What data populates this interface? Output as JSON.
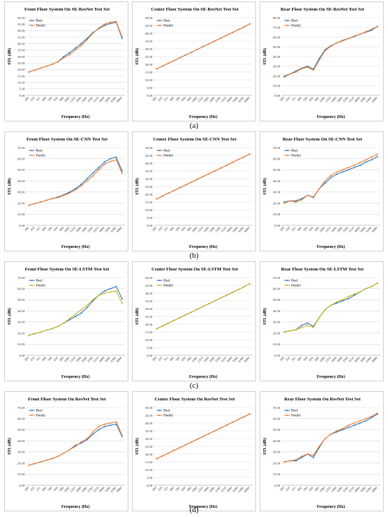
{
  "freq_labels": [
    "200",
    "250",
    "315",
    "400",
    "500",
    "630",
    "800",
    "1000",
    "1250",
    "1600",
    "2000",
    "2500",
    "3150",
    "4000",
    "5000",
    "6300",
    "8000"
  ],
  "colors": {
    "real": "#2e75b6",
    "predict": "#ed7d31",
    "predict_lstm": "#c9b21a",
    "grid": "#d9d9d9",
    "frame": "#d0d0d0"
  },
  "row_labels": [
    "(a)",
    "(b)",
    "(c)",
    "(d)"
  ],
  "chart_data": [
    {
      "type": "line",
      "title": "Front Floor System On SE-ResNet Test Set",
      "xlabel": "Frequency (Hz)",
      "ylabel": "STL (dB)",
      "ylim": [
        0,
        60
      ],
      "ystep": 5,
      "tick_decimals": 2,
      "legend": "top-left",
      "series": [
        {
          "name": "Real",
          "color": "#2e75b6",
          "values": [
            18,
            19.5,
            21,
            22.5,
            24,
            26,
            30,
            33,
            36.5,
            40,
            44,
            48.5,
            51.5,
            54,
            55.5,
            56.5,
            44
          ]
        },
        {
          "name": "Predict",
          "color": "#ed7d31",
          "values": [
            18,
            19.5,
            21,
            22.5,
            24,
            26,
            29,
            31.5,
            35,
            38.5,
            43,
            48,
            52,
            55,
            56.5,
            57,
            45
          ]
        }
      ]
    },
    {
      "type": "line",
      "title": "Center Floor System On SE-ResNet Test Set",
      "xlabel": "Frequency (Hz)",
      "ylabel": "STL (dB)",
      "ylim": [
        0,
        50
      ],
      "ystep": 5,
      "tick_decimals": 2,
      "legend": "top-left",
      "series": [
        {
          "name": "Real",
          "color": "#2e75b6",
          "values": [
            17,
            18.8,
            20.6,
            22.4,
            24.2,
            26,
            27.8,
            29.6,
            31.4,
            33.2,
            35,
            36.8,
            38.6,
            40.4,
            42.2,
            44,
            46
          ]
        },
        {
          "name": "Predict",
          "color": "#ed7d31",
          "values": [
            17,
            18.8,
            20.6,
            22.4,
            24.2,
            26,
            27.8,
            29.6,
            31.4,
            33.2,
            35,
            36.8,
            38.6,
            40.4,
            42.2,
            44,
            46
          ]
        }
      ]
    },
    {
      "type": "line",
      "title": "Rear Floor System On SE-ResNet Test Set",
      "xlabel": "Frequency (Hz)",
      "ylabel": "STL (dB)",
      "ylim": [
        0,
        80
      ],
      "ystep": 10,
      "tick_decimals": 2,
      "legend": "top-left",
      "series": [
        {
          "name": "Real",
          "color": "#2e75b6",
          "values": [
            19,
            22,
            25,
            28,
            30,
            27,
            38,
            47,
            51,
            54,
            56.5,
            58.5,
            60.5,
            63,
            65,
            67,
            71
          ]
        },
        {
          "name": "Predict",
          "color": "#ed7d31",
          "values": [
            20,
            22,
            24,
            27.5,
            29,
            26,
            36,
            46,
            50.5,
            54,
            56,
            58.5,
            61,
            63,
            65.5,
            68,
            71
          ]
        }
      ]
    },
    {
      "type": "line",
      "title": "Front Floor System On SE-CNN Test Set",
      "xlabel": "Frequency (Hz)",
      "ylabel": "STL (dB)",
      "ylim": [
        0,
        70
      ],
      "ystep": 10,
      "tick_decimals": 2,
      "legend": "top-left",
      "series": [
        {
          "name": "Real",
          "color": "#2e75b6",
          "values": [
            18,
            19.5,
            21,
            22.5,
            24,
            25.5,
            27.5,
            30,
            33,
            37,
            42,
            47,
            52,
            57,
            60,
            61.5,
            49
          ]
        },
        {
          "name": "Predict",
          "color": "#ed7d31",
          "values": [
            18,
            19.5,
            21,
            22.5,
            24,
            25,
            27,
            29,
            32,
            35.5,
            40,
            44.5,
            50,
            55,
            57.5,
            59,
            47
          ]
        }
      ]
    },
    {
      "type": "line",
      "title": "Center Floor System On SE-CNN Test Set",
      "xlabel": "Frequency (Hz)",
      "ylabel": "STL (dB)",
      "ylim": [
        0,
        50
      ],
      "ystep": 5,
      "tick_decimals": 2,
      "legend": "top-left",
      "series": [
        {
          "name": "Real",
          "color": "#2e75b6",
          "values": [
            17,
            18.8,
            20.6,
            22.4,
            24.2,
            26,
            27.8,
            29.6,
            31.4,
            33.2,
            35,
            36.8,
            38.6,
            40.4,
            42.2,
            44,
            46
          ]
        },
        {
          "name": "Predict",
          "color": "#ed7d31",
          "values": [
            17,
            18.8,
            20.6,
            22.4,
            24.2,
            26,
            27.8,
            29.6,
            31.4,
            33.2,
            35,
            36.8,
            38.6,
            40.4,
            42.2,
            44,
            46
          ]
        }
      ]
    },
    {
      "type": "line",
      "title": "Rear Floor System On SE-CNN Test Set",
      "xlabel": "Frequency (Hz)",
      "ylabel": "STL (dB)",
      "ylim": [
        0,
        70
      ],
      "ystep": 10,
      "tick_decimals": 2,
      "legend": "top-left",
      "series": [
        {
          "name": "Real",
          "color": "#2e75b6",
          "values": [
            21,
            22,
            22,
            24,
            27,
            25.5,
            33,
            38,
            43,
            46,
            48,
            50,
            52,
            54,
            57,
            59,
            62
          ]
        },
        {
          "name": "Predict",
          "color": "#ed7d31",
          "values": [
            20,
            22,
            21,
            23,
            27,
            25,
            33,
            40,
            45,
            48,
            50,
            52,
            54,
            56.5,
            59,
            61.5,
            64
          ]
        }
      ]
    },
    {
      "type": "line",
      "title": "Front Floor System On SE-LSTM Test Set",
      "xlabel": "Frequency (Hz)",
      "ylabel": "STL (dB)",
      "ylim": [
        0,
        70
      ],
      "ystep": 10,
      "tick_decimals": 2,
      "legend": "top-left",
      "series": [
        {
          "name": "Real",
          "color": "#2e75b6",
          "values": [
            18,
            19.5,
            21,
            22.5,
            24,
            26,
            29,
            32,
            35,
            38,
            43,
            49,
            54,
            58,
            60,
            62,
            51
          ]
        },
        {
          "name": "Predict",
          "color": "#c9b21a",
          "values": [
            18,
            19.5,
            21,
            22.5,
            24,
            26,
            29,
            33,
            37,
            41,
            45,
            50,
            54,
            56,
            57,
            58,
            47
          ]
        }
      ]
    },
    {
      "type": "line",
      "title": "Center Floor System On SE-LSTM Test Set",
      "xlabel": "Frequency (Hz)",
      "ylabel": "STL (dB)",
      "ylim": [
        0,
        50
      ],
      "ystep": 5,
      "tick_decimals": 2,
      "legend": "top-left",
      "series": [
        {
          "name": "Real",
          "color": "#2e75b6",
          "values": [
            17,
            18.8,
            20.6,
            22.4,
            24.2,
            26,
            27.8,
            29.6,
            31.4,
            33.2,
            35,
            36.8,
            38.6,
            40.4,
            42.2,
            44,
            46
          ]
        },
        {
          "name": "Predict",
          "color": "#c9b21a",
          "values": [
            17,
            18.8,
            20.6,
            22.4,
            24.2,
            26,
            27.8,
            29.6,
            31.4,
            33.2,
            35,
            36.8,
            38.6,
            40.4,
            42.2,
            44,
            46
          ]
        }
      ]
    },
    {
      "type": "line",
      "title": "Rear Floor System On SE-LSTM Test Set",
      "xlabel": "Frequency (Hz)",
      "ylabel": "STL (dB)",
      "ylim": [
        0,
        70
      ],
      "ystep": 10,
      "tick_decimals": 2,
      "legend": "top-left",
      "series": [
        {
          "name": "Real",
          "color": "#2e75b6",
          "values": [
            21,
            22,
            23,
            27,
            29,
            26,
            34,
            41,
            45,
            47,
            49,
            51,
            54,
            57,
            60,
            62,
            65
          ]
        },
        {
          "name": "Predict",
          "color": "#c9b21a",
          "values": [
            21,
            22,
            23,
            25,
            27,
            25,
            34,
            41,
            45,
            48,
            50,
            53,
            55,
            57,
            60,
            62,
            65
          ]
        }
      ]
    },
    {
      "type": "line",
      "title": "Front Floor System On ResNet Test Set",
      "xlabel": "Frequency (Hz)",
      "ylabel": "STL (dB)",
      "ylim": [
        0,
        70
      ],
      "ystep": 10,
      "tick_decimals": 2,
      "legend": "top-left",
      "series": [
        {
          "name": "Real",
          "color": "#2e75b6",
          "values": [
            18,
            19.5,
            21,
            22.5,
            24,
            26,
            29,
            32,
            36,
            38,
            41,
            46,
            50,
            53,
            54,
            55,
            44
          ]
        },
        {
          "name": "Predict",
          "color": "#ed7d31",
          "values": [
            18,
            19.5,
            21,
            22.5,
            24,
            26,
            29,
            32,
            35,
            39,
            42,
            48,
            53,
            55,
            56,
            57,
            45
          ]
        }
      ]
    },
    {
      "type": "line",
      "title": "Center Floor System On ResNet Test Set",
      "xlabel": "Frequency (Hz)",
      "ylabel": "STL (dB)",
      "ylim": [
        0,
        50
      ],
      "ystep": 5,
      "tick_decimals": 2,
      "legend": "top-left",
      "series": [
        {
          "name": "Real",
          "color": "#2e75b6",
          "values": [
            17,
            18.8,
            20.6,
            22.4,
            24.2,
            26,
            27.8,
            29.6,
            31.4,
            33.2,
            35,
            36.8,
            38.6,
            40.4,
            42.2,
            44,
            46
          ]
        },
        {
          "name": "Predict",
          "color": "#ed7d31",
          "values": [
            17,
            18.8,
            20.6,
            22.4,
            24.2,
            26,
            27.8,
            29.6,
            31.4,
            33.2,
            35,
            36.8,
            38.6,
            40.4,
            42.2,
            44,
            46
          ]
        }
      ]
    },
    {
      "type": "line",
      "title": "Rear Floor System On ResNet Test Set",
      "xlabel": "Frequency (Hz)",
      "ylabel": "STL (dB)",
      "ylim": [
        0,
        70
      ],
      "ystep": 10,
      "tick_decimals": 2,
      "legend": "top-left",
      "series": [
        {
          "name": "Real",
          "color": "#2e75b6",
          "values": [
            21,
            22,
            22,
            25,
            28,
            25,
            34,
            42,
            46,
            48,
            50,
            52,
            54,
            56,
            58,
            61,
            64
          ]
        },
        {
          "name": "Predict",
          "color": "#ed7d31",
          "values": [
            21,
            22,
            23,
            26,
            28,
            27,
            35,
            42,
            46,
            49,
            51,
            54,
            56,
            58,
            60,
            62,
            65
          ]
        }
      ]
    }
  ]
}
